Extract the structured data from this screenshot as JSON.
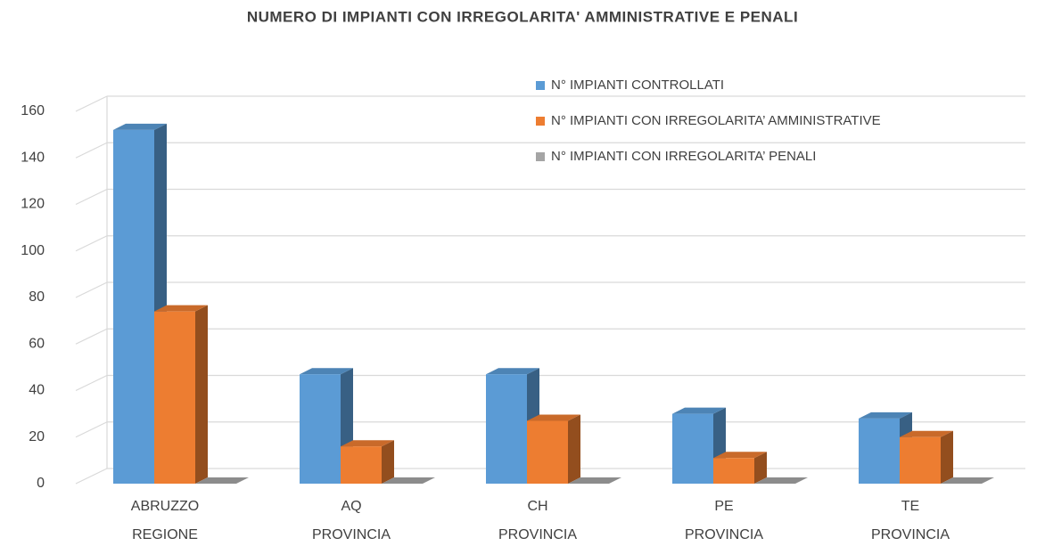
{
  "chart_data": {
    "type": "bar3d",
    "title": "NUMERO DI IMPIANTI CON IRREGOLARITA' AMMINISTRATIVE E PENALI",
    "categories": [
      [
        "ABRUZZO",
        "REGIONE"
      ],
      [
        "AQ",
        "PROVINCIA"
      ],
      [
        "CH",
        "PROVINCIA"
      ],
      [
        "PE",
        "PROVINCIA"
      ],
      [
        "TE",
        "PROVINCIA"
      ]
    ],
    "series": [
      {
        "name": "N° IMPIANTI CONTROLLATI",
        "color": "#5b9bd5",
        "values": [
          152,
          47,
          47,
          30,
          28
        ]
      },
      {
        "name": "N° IMPIANTI CON IRREGOLARITA’ AMMINISTRATIVE",
        "color": "#ed7d31",
        "values": [
          74,
          16,
          27,
          11,
          20
        ]
      },
      {
        "name": "N° IMPIANTI CON IRREGOLARITA’ PENALI",
        "color": "#a5a5a5",
        "values": [
          0,
          0,
          0,
          0,
          0
        ]
      }
    ],
    "ylim": [
      0,
      160
    ],
    "yticks": [
      0,
      20,
      40,
      60,
      80,
      100,
      120,
      140,
      160
    ],
    "grid": true
  }
}
